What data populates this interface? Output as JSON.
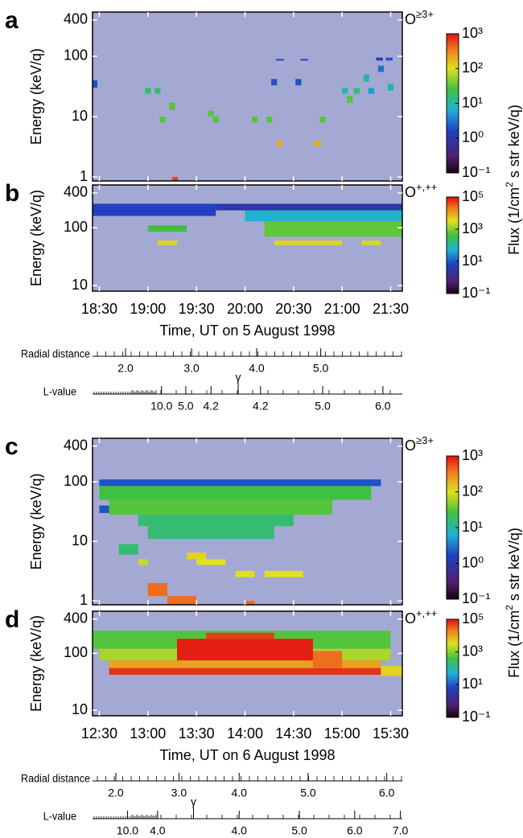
{
  "chart_data": [
    {
      "type": "heatmap",
      "panel": "a",
      "species": "O",
      "species_charge": "≥3+",
      "ylabel": "Energy (keV/q)",
      "ylog": true,
      "ylim": [
        0.86,
        540
      ],
      "yticks": [
        1,
        10,
        100,
        400
      ],
      "xlim": [
        18.43,
        21.62
      ],
      "colorbar": {
        "log": true,
        "clim": [
          0.1,
          1000
        ],
        "ticks": [
          {
            "value": 0.1,
            "label": "10⁻¹"
          },
          {
            "value": 1,
            "label": "10⁰"
          },
          {
            "value": 10,
            "label": "10¹"
          },
          {
            "value": 100,
            "label": "10²"
          },
          {
            "value": 1000,
            "label": "10³"
          }
        ]
      },
      "cells": [
        [
          18.43,
          18.48,
          30,
          40,
          2
        ],
        [
          18.97,
          19.03,
          24,
          30,
          16
        ],
        [
          19.07,
          19.13,
          24,
          30,
          16
        ],
        [
          19.12,
          19.18,
          8,
          10,
          30
        ],
        [
          19.22,
          19.28,
          13,
          17,
          30
        ],
        [
          19.62,
          19.68,
          10,
          12.5,
          30
        ],
        [
          19.67,
          19.73,
          8,
          10,
          30
        ],
        [
          20.07,
          20.13,
          8,
          10,
          30
        ],
        [
          20.22,
          20.28,
          8,
          10,
          30
        ],
        [
          20.32,
          20.38,
          3.2,
          4,
          200
        ],
        [
          20.27,
          20.33,
          33,
          42,
          2
        ],
        [
          20.52,
          20.58,
          33,
          42,
          2
        ],
        [
          20.32,
          20.4,
          85,
          90,
          1.3
        ],
        [
          20.57,
          20.65,
          85,
          90,
          1.3
        ],
        [
          20.72,
          20.78,
          3.2,
          4,
          200
        ],
        [
          20.77,
          20.83,
          8,
          10,
          30
        ],
        [
          21.0,
          21.06,
          24,
          30,
          10
        ],
        [
          21.05,
          21.11,
          17,
          22,
          30
        ],
        [
          21.12,
          21.18,
          24,
          30,
          16
        ],
        [
          21.22,
          21.28,
          38,
          50,
          10
        ],
        [
          21.27,
          21.33,
          24,
          30,
          5
        ],
        [
          21.37,
          21.43,
          55,
          70,
          3
        ],
        [
          21.47,
          21.53,
          27,
          35,
          10
        ],
        [
          21.35,
          21.42,
          85,
          95,
          1.3
        ],
        [
          21.45,
          21.52,
          85,
          95,
          2
        ],
        [
          19.25,
          19.31,
          0.86,
          1,
          600
        ]
      ]
    },
    {
      "type": "heatmap",
      "panel": "b",
      "species": "O",
      "species_charge": "+,++",
      "ylabel": "Energy (keV/q)",
      "ylog": true,
      "ylim": [
        8,
        550
      ],
      "yticks": [
        10,
        100,
        400
      ],
      "xlim": [
        18.43,
        21.62
      ],
      "xticks": [
        {
          "value": 18.5,
          "label": "18:30"
        },
        {
          "value": 19,
          "label": "19:00"
        },
        {
          "value": 19.5,
          "label": "19:30"
        },
        {
          "value": 20,
          "label": "20:00"
        },
        {
          "value": 20.5,
          "label": "20:30"
        },
        {
          "value": 21,
          "label": "21:00"
        },
        {
          "value": 21.5,
          "label": "21:30"
        }
      ],
      "xlabel": "Time, UT on 5 August 1998",
      "colorbar": {
        "log": true,
        "clim": [
          0.1,
          100000
        ],
        "label": "Flux (1/cm",
        "label_sup": "2",
        "label_end": " s str keV/q)",
        "ticks": [
          {
            "value": 0.1,
            "label": "10⁻¹"
          },
          {
            "value": 10,
            "label": "10¹"
          },
          {
            "value": 1000,
            "label": "10³"
          },
          {
            "value": 100000,
            "label": "10⁵"
          }
        ]
      },
      "cells": [
        [
          18.43,
          19.7,
          160,
          260,
          6
        ],
        [
          19.7,
          21.62,
          200,
          260,
          3
        ],
        [
          20.0,
          21.62,
          130,
          200,
          60
        ],
        [
          20.2,
          21.62,
          70,
          130,
          600
        ],
        [
          19.0,
          19.4,
          85,
          110,
          400
        ],
        [
          20.3,
          21.0,
          50,
          60,
          4000
        ],
        [
          19.1,
          19.3,
          50,
          60,
          4000
        ],
        [
          21.2,
          21.4,
          50,
          60,
          2500
        ]
      ],
      "radial_distance": {
        "label": "Radial distance",
        "ticks": [
          {
            "time": 18.77,
            "label": "2.0"
          },
          {
            "time": 19.45,
            "label": "3.0"
          },
          {
            "time": 20.12,
            "label": "4.0"
          },
          {
            "time": 20.78,
            "label": "5.0"
          }
        ]
      },
      "l_value": {
        "label": "L-value",
        "ticks": [
          {
            "time": 19.14,
            "label": "10.0"
          },
          {
            "time": 19.39,
            "label": "5.0"
          },
          {
            "time": 19.65,
            "label": "4.2"
          },
          {
            "time": 20.16,
            "label": "4.2"
          },
          {
            "time": 20.8,
            "label": "5.0"
          },
          {
            "time": 21.42,
            "label": "6.0"
          }
        ],
        "marker": {
          "time": 19.93,
          "label": "γ"
        }
      }
    },
    {
      "type": "heatmap",
      "panel": "c",
      "species": "O",
      "species_charge": "≥3+",
      "ylabel": "Energy (keV/q)",
      "ylog": true,
      "ylim": [
        0.86,
        540
      ],
      "yticks": [
        1,
        10,
        100,
        400
      ],
      "xlim": [
        12.43,
        15.62
      ],
      "colorbar": {
        "log": true,
        "clim": [
          0.1,
          1000
        ],
        "ticks": [
          {
            "value": 0.1,
            "label": "10⁻¹"
          },
          {
            "value": 1,
            "label": "10⁰"
          },
          {
            "value": 10,
            "label": "10¹"
          },
          {
            "value": 100,
            "label": "10²"
          },
          {
            "value": 1000,
            "label": "10³"
          }
        ]
      },
      "cells": [
        [
          12.5,
          15.4,
          85,
          110,
          2
        ],
        [
          12.5,
          15.3,
          50,
          85,
          25
        ],
        [
          12.6,
          14.9,
          28,
          50,
          30
        ],
        [
          12.9,
          14.5,
          18,
          28,
          16
        ],
        [
          13.0,
          14.3,
          11,
          18,
          16
        ],
        [
          12.7,
          12.9,
          6,
          9,
          16
        ],
        [
          13.4,
          13.6,
          5,
          6.5,
          120
        ],
        [
          12.9,
          13.0,
          4,
          5,
          80
        ],
        [
          13.5,
          13.8,
          4,
          5,
          100
        ],
        [
          13.9,
          14.1,
          2.5,
          3.2,
          100
        ],
        [
          14.2,
          14.6,
          2.5,
          3.2,
          100
        ],
        [
          13.0,
          13.2,
          1.2,
          2,
          400
        ],
        [
          13.2,
          13.5,
          0.86,
          1.2,
          400
        ],
        [
          14.0,
          14.1,
          0.86,
          1,
          400
        ],
        [
          12.5,
          12.6,
          30,
          40,
          2
        ]
      ]
    },
    {
      "type": "heatmap",
      "panel": "d",
      "species": "O",
      "species_charge": "+,++",
      "ylabel": "Energy (keV/q)",
      "ylog": true,
      "ylim": [
        8,
        550
      ],
      "yticks": [
        10,
        100,
        400
      ],
      "xlim": [
        12.43,
        15.62
      ],
      "xticks": [
        {
          "value": 12.5,
          "label": "12:30"
        },
        {
          "value": 13,
          "label": "13:00"
        },
        {
          "value": 13.5,
          "label": "13:30"
        },
        {
          "value": 14,
          "label": "14:00"
        },
        {
          "value": 14.5,
          "label": "14:30"
        },
        {
          "value": 15,
          "label": "15:00"
        },
        {
          "value": 15.5,
          "label": "15:30"
        }
      ],
      "xlabel": "Time, UT on 6 August 1998",
      "colorbar": {
        "log": true,
        "clim": [
          0.1,
          100000
        ],
        "label": "Flux (1/cm",
        "label_sup": "2",
        "label_end": " s str keV/q)",
        "ticks": [
          {
            "value": 0.1,
            "label": "10⁻¹"
          },
          {
            "value": 10,
            "label": "10¹"
          },
          {
            "value": 1000,
            "label": "10³"
          },
          {
            "value": 100000,
            "label": "10⁵"
          }
        ]
      },
      "cells": [
        [
          12.43,
          15.5,
          120,
          250,
          500
        ],
        [
          12.5,
          15.5,
          75,
          120,
          1600
        ],
        [
          12.6,
          15.4,
          55,
          75,
          10000
        ],
        [
          12.6,
          15.4,
          42,
          55,
          60000
        ],
        [
          13.3,
          14.7,
          75,
          180,
          80000
        ],
        [
          13.6,
          14.3,
          180,
          230,
          50000
        ],
        [
          14.7,
          15.0,
          55,
          110,
          25000
        ],
        [
          15.4,
          15.62,
          40,
          60,
          4000
        ]
      ],
      "radial_distance": {
        "label": "Radial distance",
        "ticks": [
          {
            "time": 12.67,
            "label": "2.0"
          },
          {
            "time": 13.32,
            "label": "3.0"
          },
          {
            "time": 13.94,
            "label": "4.0"
          },
          {
            "time": 14.65,
            "label": "5.0"
          },
          {
            "time": 15.46,
            "label": "6.0"
          }
        ]
      },
      "l_value": {
        "label": "L-value",
        "ticks": [
          {
            "time": 12.79,
            "label": "10.0"
          },
          {
            "time": 13.1,
            "label": "4.0"
          },
          {
            "time": 13.94,
            "label": "4.0"
          },
          {
            "time": 14.56,
            "label": "5.0"
          },
          {
            "time": 15.13,
            "label": "6.0"
          },
          {
            "time": 15.6,
            "label": "7.0"
          }
        ],
        "marker": {
          "time": 13.47,
          "label": "γ"
        }
      }
    }
  ]
}
